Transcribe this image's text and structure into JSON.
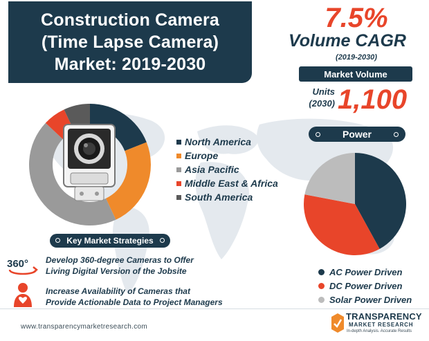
{
  "title": {
    "lines": [
      "Construction Camera",
      "(Time Lapse Camera)",
      "Market: 2019-2030"
    ]
  },
  "kpi": {
    "cagr_value": "7.5%",
    "cagr_label": "Volume CAGR",
    "cagr_period": "(2019-2030)",
    "market_volume_label": "Market Volume",
    "units_label_line1": "Units",
    "units_label_line2": "(2030)",
    "units_value": "1,100"
  },
  "strategies": {
    "heading": "Key Market Strategies",
    "icon_text": "360°",
    "items": [
      {
        "line1": "Develop 360-degree Cameras to Offer",
        "line2": "Living Digital Version of the Jobsite"
      },
      {
        "line1": "Increase Availability of Cameras that",
        "line2": "Provide Actionable Data to Project Managers"
      }
    ]
  },
  "power": {
    "heading": "Power"
  },
  "footer": {
    "url": "www.transparencymarketresearch.com",
    "logo_line1": "TRANSPARENCY",
    "logo_line2": "MARKET RESEARCH",
    "logo_line3": "In-depth Analysis. Accurate Results"
  },
  "colors": {
    "navy": "#1d3a4c",
    "orange": "#ef8a2b",
    "gray": "#9a9a9a",
    "red": "#e8452a",
    "darkgray": "#5a5a5a",
    "lightgray": "#bcbcbc"
  },
  "chart_data": [
    {
      "type": "pie",
      "subtype": "donut",
      "legend_position": "right",
      "categories": [
        "North America",
        "Europe",
        "Asia Pacific",
        "Middle East & Africa",
        "South America"
      ],
      "values": [
        19,
        24,
        44,
        6,
        7
      ],
      "colors": [
        "#1d3a4c",
        "#ef8a2b",
        "#9a9a9a",
        "#e8452a",
        "#5a5a5a"
      ]
    },
    {
      "type": "pie",
      "title": "Power",
      "legend_position": "bottom",
      "categories": [
        "AC Power Driven",
        "DC Power Driven",
        "Solar Power Driven"
      ],
      "values": [
        42,
        36,
        22
      ],
      "colors": [
        "#1d3a4c",
        "#e8452a",
        "#bcbcbc"
      ]
    }
  ]
}
